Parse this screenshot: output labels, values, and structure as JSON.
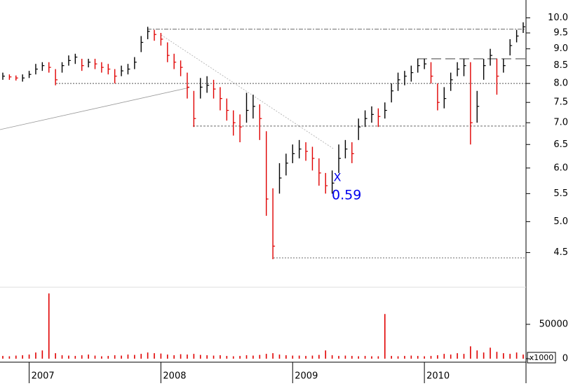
{
  "chart_data": {
    "type": "hlc",
    "categories": [
      null,
      null,
      null,
      null,
      "2007",
      null,
      null,
      null,
      null,
      null,
      null,
      null,
      null,
      null,
      null,
      null,
      null,
      null,
      null,
      null,
      null,
      null,
      null,
      null,
      "2008",
      null,
      null,
      null,
      null,
      null,
      null,
      null,
      null,
      null,
      null,
      null,
      null,
      null,
      null,
      null,
      null,
      null,
      null,
      null,
      "2009",
      null,
      null,
      null,
      null,
      null,
      null,
      null,
      null,
      null,
      null,
      null,
      null,
      null,
      null,
      null,
      null,
      null,
      null,
      null,
      "2010",
      null,
      null,
      null,
      null,
      null,
      null,
      null,
      null,
      null,
      null,
      null,
      null,
      null,
      null,
      null
    ],
    "close": [
      8.2,
      8.18,
      8.15,
      8.15,
      8.25,
      8.4,
      8.5,
      8.45,
      8.1,
      8.5,
      8.65,
      8.75,
      8.5,
      8.6,
      8.55,
      8.45,
      8.4,
      8.2,
      8.35,
      8.4,
      8.6,
      9.2,
      9.55,
      9.45,
      9.3,
      8.8,
      8.6,
      8.45,
      7.9,
      7.1,
      7.9,
      7.95,
      7.85,
      7.6,
      7.3,
      7.0,
      6.9,
      7.3,
      7.4,
      7.1,
      5.4,
      4.6,
      5.8,
      6.1,
      6.3,
      6.4,
      6.35,
      6.2,
      5.9,
      5.65,
      5.7,
      6.2,
      6.4,
      6.3,
      6.9,
      7.1,
      7.2,
      7.15,
      7.3,
      7.8,
      8.1,
      8.2,
      8.3,
      8.5,
      8.55,
      8.2,
      7.5,
      7.6,
      8.1,
      8.4,
      8.5,
      7.0,
      7.4,
      8.5,
      8.8,
      8.2,
      8.5,
      9.1,
      9.4,
      9.7
    ],
    "high": [
      8.3,
      8.25,
      8.22,
      8.25,
      8.35,
      8.55,
      8.6,
      8.6,
      8.4,
      8.6,
      8.8,
      8.85,
      8.7,
      8.7,
      8.7,
      8.6,
      8.55,
      8.4,
      8.5,
      8.55,
      8.75,
      9.4,
      9.7,
      9.6,
      9.5,
      9.2,
      8.85,
      8.65,
      8.3,
      7.8,
      8.15,
      8.2,
      8.1,
      7.9,
      7.6,
      7.3,
      7.2,
      7.75,
      7.7,
      7.45,
      6.8,
      5.6,
      6.1,
      6.3,
      6.5,
      6.6,
      6.55,
      6.45,
      6.2,
      5.9,
      5.95,
      6.5,
      6.6,
      6.55,
      7.1,
      7.3,
      7.4,
      7.35,
      7.5,
      8.0,
      8.3,
      8.35,
      8.5,
      8.7,
      8.7,
      8.6,
      8.0,
      7.9,
      8.3,
      8.6,
      8.7,
      8.6,
      7.8,
      8.7,
      9.0,
      8.7,
      8.7,
      9.3,
      9.6,
      9.85
    ],
    "low": [
      8.1,
      8.1,
      8.08,
      8.05,
      8.15,
      8.25,
      8.35,
      8.3,
      7.95,
      8.3,
      8.5,
      8.55,
      8.35,
      8.45,
      8.4,
      8.3,
      8.25,
      8.0,
      8.2,
      8.25,
      8.4,
      8.9,
      9.3,
      9.25,
      9.1,
      8.6,
      8.4,
      8.2,
      7.6,
      6.9,
      7.6,
      7.75,
      7.6,
      7.3,
      7.05,
      6.7,
      6.55,
      7.0,
      7.1,
      6.6,
      5.1,
      4.4,
      5.5,
      5.85,
      6.1,
      6.2,
      6.15,
      5.95,
      5.65,
      5.5,
      5.5,
      5.9,
      6.2,
      6.1,
      6.6,
      6.9,
      7.0,
      6.9,
      7.1,
      7.5,
      7.8,
      7.95,
      8.05,
      8.3,
      8.4,
      8.0,
      7.3,
      7.35,
      7.8,
      8.2,
      8.2,
      6.5,
      7.0,
      8.1,
      8.5,
      7.7,
      8.3,
      8.8,
      9.2,
      9.5
    ],
    "volume": [
      4000,
      3500,
      4500,
      5000,
      6000,
      9000,
      12000,
      95000,
      8000,
      5000,
      4500,
      4000,
      5000,
      6000,
      4500,
      3500,
      4000,
      5000,
      4500,
      6000,
      5500,
      7000,
      9000,
      8000,
      7500,
      6000,
      5000,
      6500,
      6000,
      7000,
      5500,
      5000,
      4500,
      5000,
      4000,
      3500,
      4000,
      5000,
      4500,
      5500,
      7000,
      8000,
      6000,
      5000,
      4500,
      4500,
      4000,
      4500,
      5500,
      12000,
      5000,
      4000,
      4500,
      4000,
      3500,
      4000,
      3500,
      3500,
      65000,
      4000,
      3500,
      4000,
      4500,
      4000,
      3500,
      4000,
      5000,
      7000,
      6000,
      8000,
      7000,
      18000,
      12000,
      9000,
      16000,
      10000,
      8000,
      7000,
      9000,
      6000
    ],
    "ylim": [
      4.0,
      10.5
    ],
    "log_scale": true,
    "yticks": [
      {
        "value": 10.0,
        "label": "10.0"
      },
      9.5,
      {
        "value": 9.0,
        "label": "9.0"
      },
      8.5,
      {
        "value": 8.0,
        "label": "8.0"
      },
      7.5,
      {
        "value": 7.0,
        "label": "7.0"
      },
      6.5,
      {
        "value": 6.0,
        "label": "6.0"
      },
      5.5,
      {
        "value": 5.0,
        "label": "5.0"
      },
      4.5
    ],
    "y2lim": [
      0,
      104000
    ],
    "y2ticks": [
      0,
      50000
    ],
    "y2_unit": "x1000",
    "levels": [
      9.62,
      8.0,
      6.92,
      4.42,
      8.7
    ],
    "annotations": [
      "X",
      "0.59"
    ],
    "up_color": "#000000",
    "down_color": "#e00000",
    "volume_color": "#e00000",
    "annotation_color": "#0000ee"
  }
}
